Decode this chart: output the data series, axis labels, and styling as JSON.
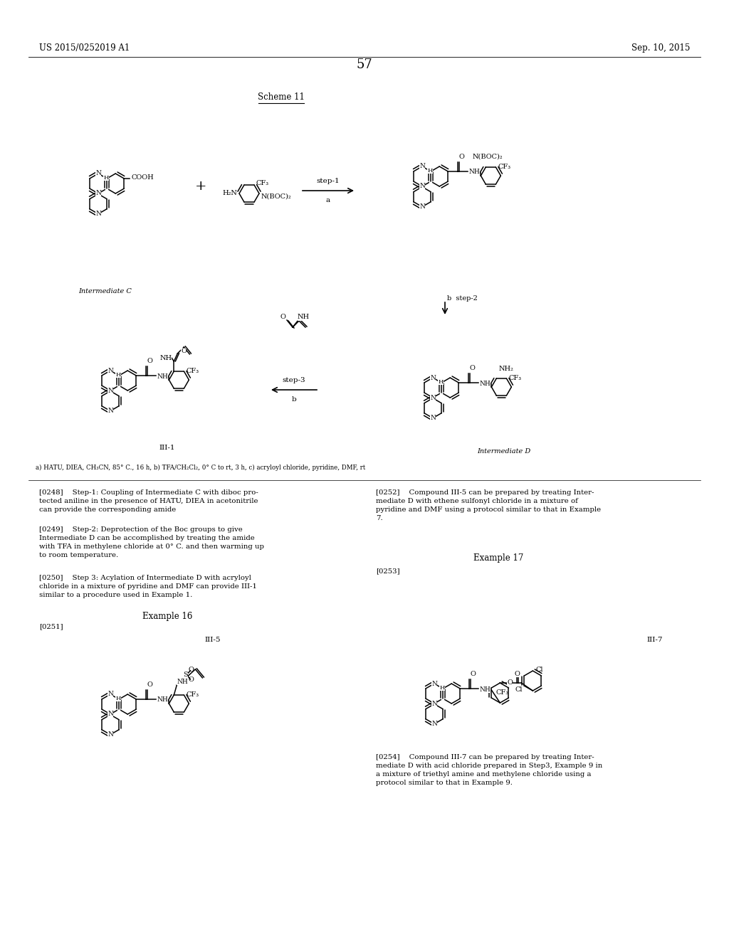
{
  "bg": "#ffffff",
  "header_left": "US 2015/0252019 A1",
  "header_right": "Sep. 10, 2015",
  "page_num": "57",
  "scheme_label": "Scheme 11",
  "footer": "a) HATU, DIEA, CH₃CN, 85° C., 16 h, b) TFA/CH₂Cl₂, 0° C to rt, 3 h, c) acryloyl chloride, pyridine, DMF, rt",
  "p0248": "[0248]    Step-1: Coupling of Intermediate C with diboc pro-\ntected aniline in the presence of HATU, DIEA in acetonitrile\ncan provide the corresponding amide",
  "p0249": "[0249]    Step-2: Deprotection of the Boc groups to give\nIntermediate D can be accomplished by treating the amide\nwith TFA in methylene chloride at 0° C. and then warming up\nto room temperature.",
  "p0250": "[0250]    Step 3: Acylation of Intermediate D with acryloyl\nchloride in a mixture of pyridine and DMF can provide III-1\nsimilar to a procedure used in Example 1.",
  "p0251": "[0251]",
  "p0252": "[0252]    Compound III-5 can be prepared by treating Inter-\nmediate D with ethene sulfonyl chloride in a mixture of\npyridine and DMF using a protocol similar to that in Example\n7.",
  "p0253": "[0253]",
  "p0254": "[0254]    Compound III-7 can be prepared by treating Inter-\nmediate D with acid chloride prepared in Step3, Example 9 in\na mixture of triethyl amine and methylene chloride using a\nprotocol similar to that in Example 9.",
  "ex16": "Example 16",
  "ex17": "Example 17",
  "lbl_IC": "Intermediate C",
  "lbl_ID": "Intermediate D",
  "lbl_III1": "III-1",
  "lbl_III5": "III-5",
  "lbl_III7": "III-7"
}
